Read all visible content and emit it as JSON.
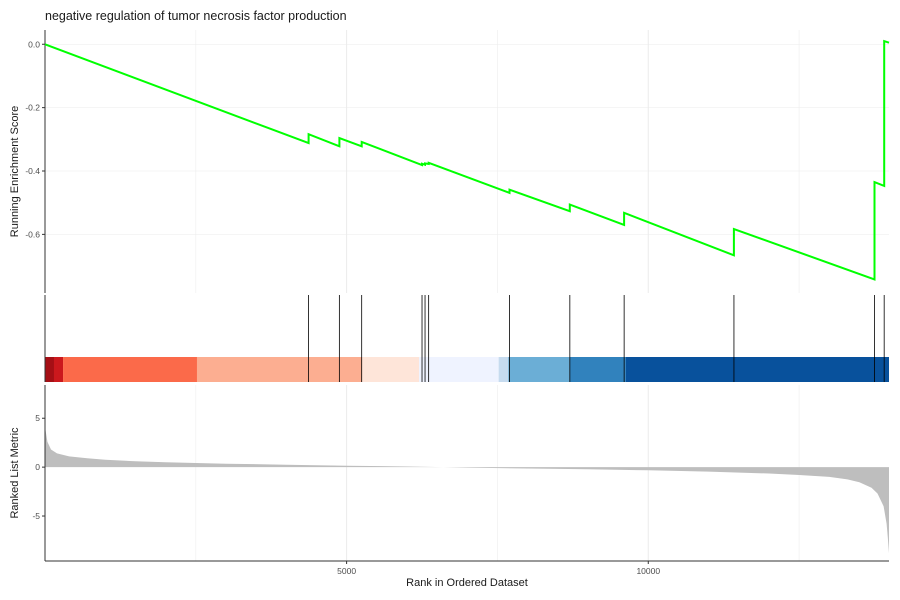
{
  "chart_data": {
    "type": "line",
    "title": "negative regulation of tumor necrosis factor production",
    "xlabel": "Rank in Ordered Dataset",
    "x_ticks": [
      5000,
      10000
    ],
    "xlim": [
      1,
      13990
    ],
    "grid": true,
    "colors": {
      "es_line": "#00ff00",
      "metric_fill": "#bebebe",
      "hit_line": "#000000",
      "axis": "#333333"
    },
    "panels": [
      {
        "name": "running-enrichment-score",
        "ylabel": "Running Enrichment Score",
        "y_ticks": [
          0.0,
          -0.2,
          -0.4,
          -0.6
        ],
        "y_tick_labels": [
          "0.0",
          "-0.2",
          "-0.4",
          "-0.6"
        ],
        "ylim": [
          -0.785,
          0.045
        ],
        "series": [
          {
            "x": [
              1,
              4370,
              4370,
              4880,
              4880,
              5250,
              5250,
              6250,
              6250,
              6300,
              6300,
              6360,
              6360,
              7700,
              7700,
              8700,
              8700,
              9600,
              9600,
              11420,
              11420,
              13750,
              13750,
              13910,
              13910,
              13990
            ],
            "y": [
              0.0,
              -0.312,
              -0.284,
              -0.322,
              -0.296,
              -0.322,
              -0.308,
              -0.381,
              -0.377,
              -0.38,
              -0.376,
              -0.378,
              -0.374,
              -0.469,
              -0.459,
              -0.527,
              -0.506,
              -0.57,
              -0.532,
              -0.666,
              -0.583,
              -0.742,
              -0.435,
              -0.447,
              0.01,
              0.005
            ]
          }
        ]
      },
      {
        "name": "gene-hits",
        "hits": [
          4370,
          4880,
          5250,
          6250,
          6300,
          6360,
          7700,
          8700,
          9600,
          11420,
          13750,
          13910
        ],
        "color_bands": [
          {
            "from": 1,
            "to": 150,
            "color": "#a50f15"
          },
          {
            "from": 150,
            "to": 300,
            "color": "#cb181d"
          },
          {
            "from": 300,
            "to": 2520,
            "color": "#fb6a4a"
          },
          {
            "from": 2520,
            "to": 5260,
            "color": "#fcae91"
          },
          {
            "from": 5260,
            "to": 6200,
            "color": "#fee5d9"
          },
          {
            "from": 6200,
            "to": 7520,
            "color": "#eff3ff"
          },
          {
            "from": 7520,
            "to": 7680,
            "color": "#c6dbef"
          },
          {
            "from": 7680,
            "to": 8700,
            "color": "#6baed6"
          },
          {
            "from": 8700,
            "to": 9630,
            "color": "#3182bd"
          },
          {
            "from": 9630,
            "to": 13990,
            "color": "#08519c"
          }
        ]
      },
      {
        "name": "ranked-list-metric",
        "type": "area",
        "ylabel": "Ranked List Metric",
        "y_ticks": [
          5,
          0,
          -5
        ],
        "y_tick_labels": [
          "5",
          "0",
          "-5"
        ],
        "ylim": [
          -9.6,
          8.4
        ],
        "x": [
          1,
          10,
          40,
          100,
          200,
          400,
          700,
          1000,
          1500,
          2000,
          2500,
          3000,
          4000,
          5000,
          6000,
          6600,
          7000,
          8000,
          9000,
          10000,
          11000,
          12000,
          12500,
          13000,
          13300,
          13500,
          13700,
          13800,
          13900,
          13950,
          13970,
          13990
        ],
        "values": [
          4.8,
          3.8,
          2.6,
          1.8,
          1.4,
          1.1,
          0.9,
          0.75,
          0.6,
          0.5,
          0.42,
          0.35,
          0.25,
          0.15,
          0.06,
          0.0,
          -0.05,
          -0.14,
          -0.22,
          -0.32,
          -0.46,
          -0.65,
          -0.8,
          -1.0,
          -1.25,
          -1.55,
          -2.1,
          -2.7,
          -4.0,
          -5.8,
          -7.2,
          -8.8
        ]
      }
    ]
  }
}
